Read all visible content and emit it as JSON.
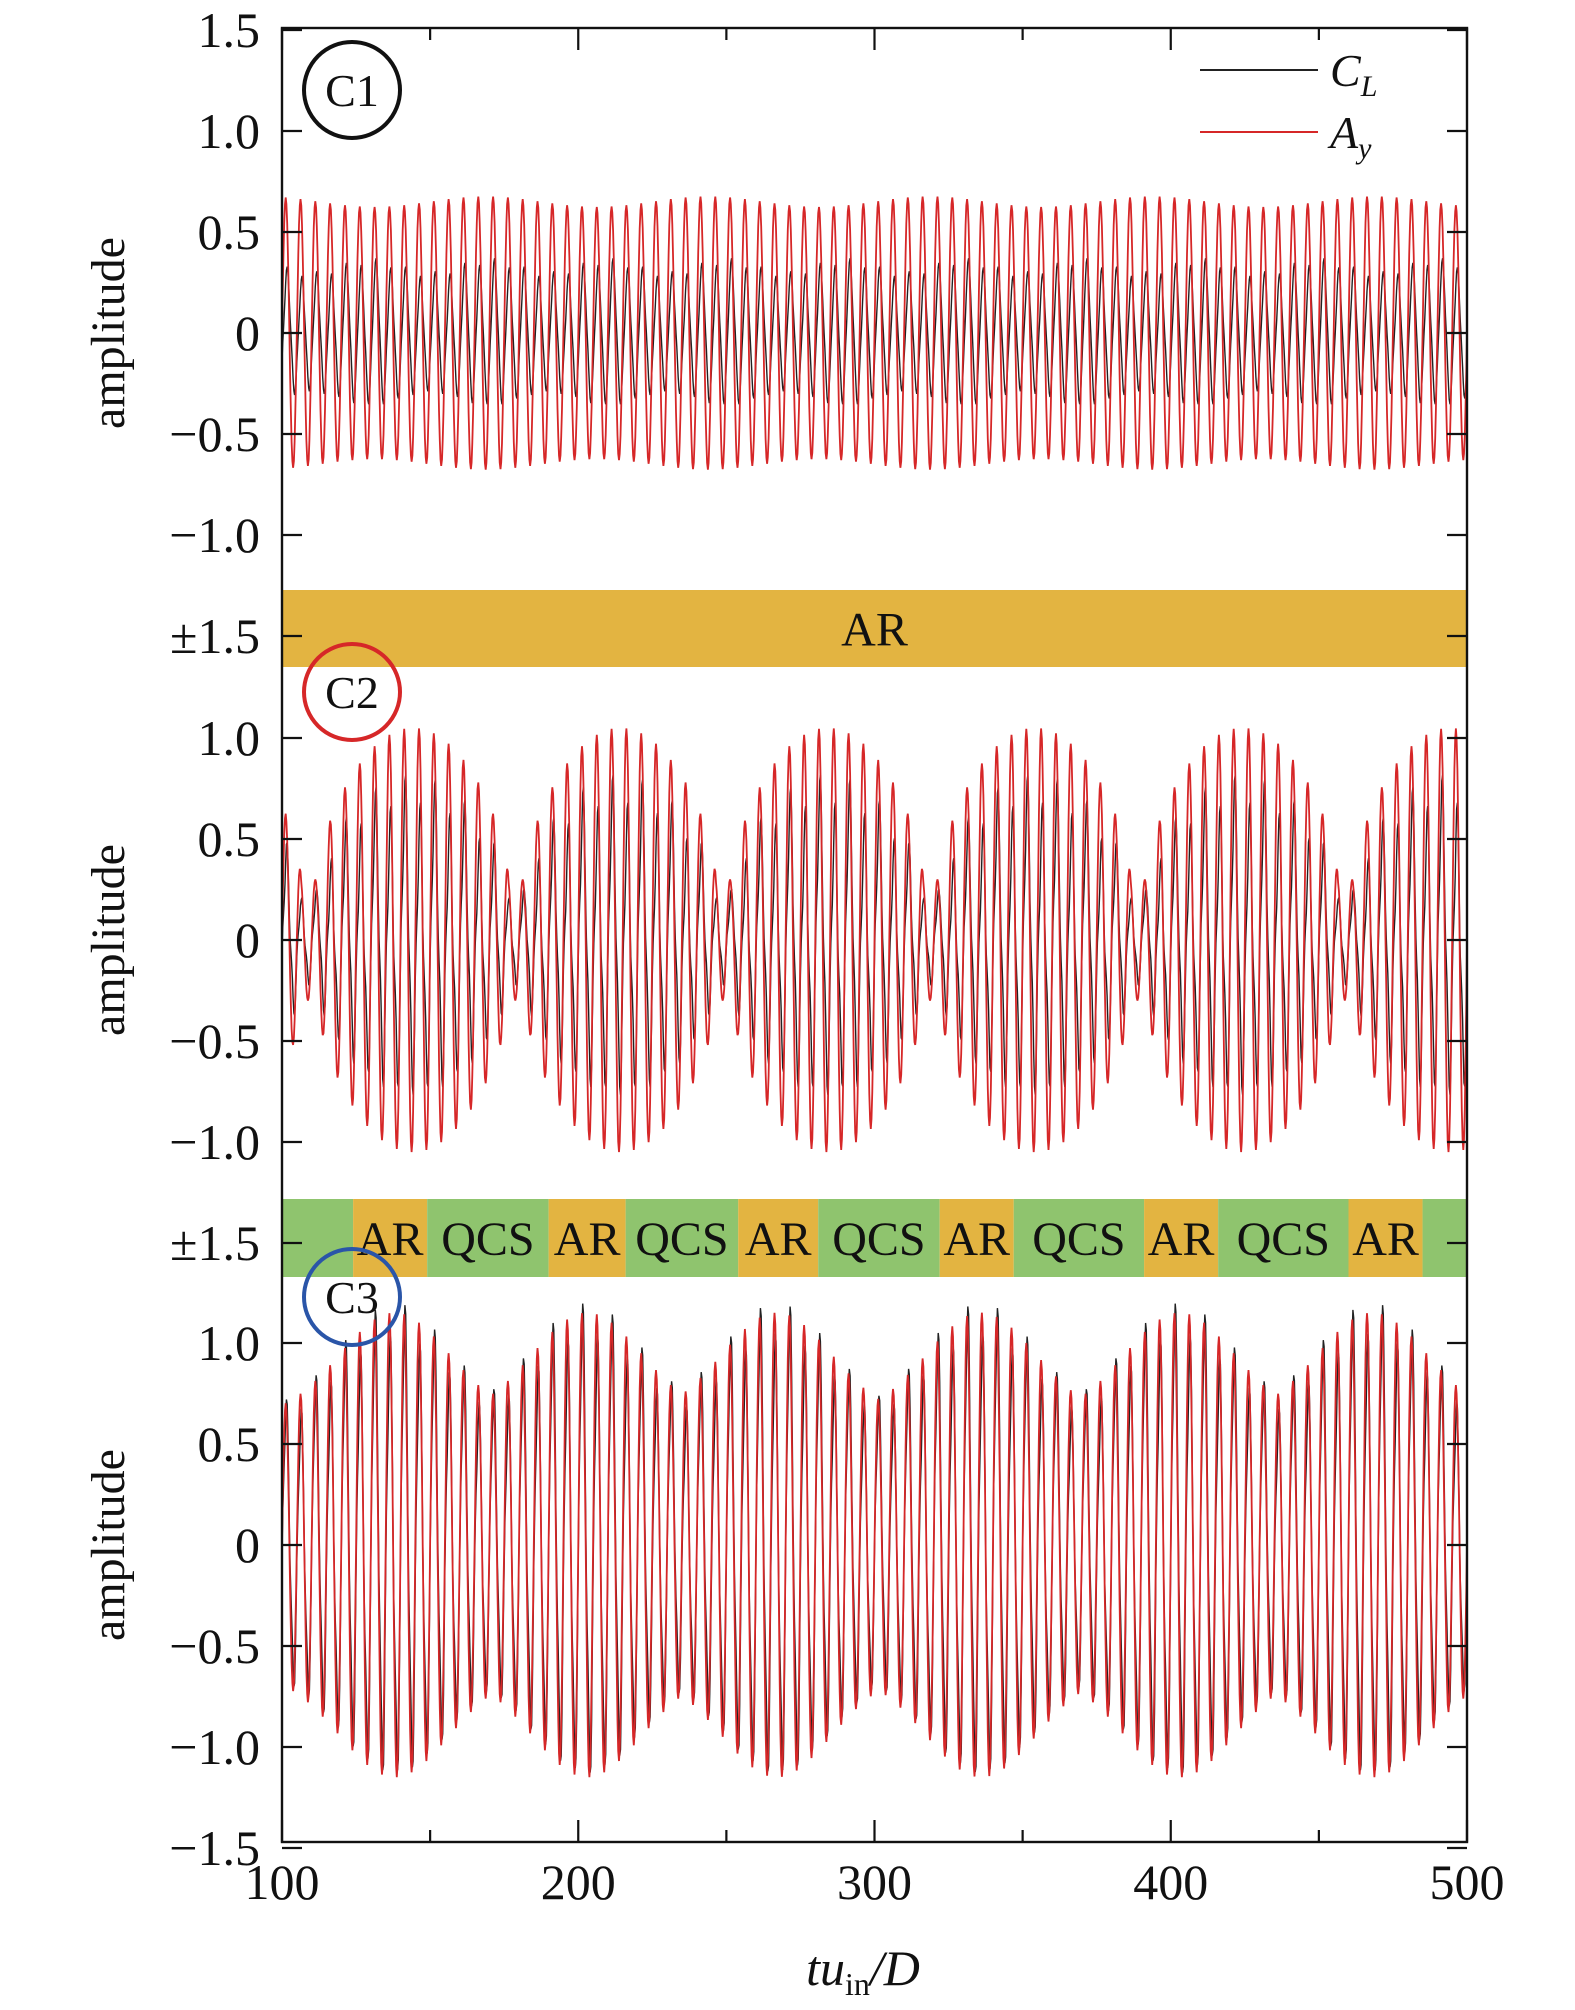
{
  "chart_data": {
    "type": "line",
    "x": {
      "label_main": "tu",
      "label_sub": "in",
      "label_tail": "/D",
      "range": [
        100,
        500
      ],
      "ticks": [
        100,
        200,
        300,
        400,
        500
      ],
      "tick_labels": [
        "100",
        "200",
        "300",
        "400",
        "500"
      ],
      "minor_step": 50
    },
    "legend": {
      "position": "top-right",
      "entries": [
        {
          "main": "C",
          "sub": "L",
          "color": "#222222"
        },
        {
          "main": "A",
          "sub": "y",
          "color": "#d62728"
        }
      ]
    },
    "panels": [
      {
        "label": "C1",
        "circle_color": "#111111",
        "ylabel": "amplitude",
        "ylim": [
          -1.5,
          1.5
        ],
        "yticks": [
          {
            "value": 1.5,
            "label": "1.5"
          },
          {
            "value": 1.0,
            "label": "1.0"
          },
          {
            "value": 0.5,
            "label": "0.5"
          },
          {
            "value": 0,
            "label": "0"
          },
          {
            "value": -0.5,
            "label": "−0.5"
          },
          {
            "value": -1.0,
            "label": "−1.0"
          },
          {
            "value": -1.5,
            "label": "±1.5"
          }
        ],
        "signal": {
          "freq": 0.2,
          "Ay": {
            "base": 0.65,
            "mod_depth": 0.04,
            "mod_period": 75,
            "phase": 0
          },
          "CL": {
            "base": 0.3,
            "mod_depth": 0.1,
            "mod_period": 40,
            "phase": -0.6,
            "harmonic": 0.08
          }
        },
        "band": {
          "segments": [
            {
              "x0": 100,
              "x1": 500,
              "label": "AR",
              "color": "#e3b441"
            }
          ]
        }
      },
      {
        "label": "C2",
        "circle_color": "#d62728",
        "ylabel": "amplitude",
        "ylim": [
          -1.5,
          1.5
        ],
        "yticks": [
          {
            "value": 1.0,
            "label": "1.0"
          },
          {
            "value": 0.5,
            "label": "0.5"
          },
          {
            "value": 0,
            "label": "0"
          },
          {
            "value": -0.5,
            "label": "−0.5"
          },
          {
            "value": -1.0,
            "label": "−1.0"
          },
          {
            "value": -1.5,
            "label": "±1.5"
          }
        ],
        "signal": {
          "freq": 0.2,
          "envelope_period": 70,
          "envelope_start": 112,
          "Ay": {
            "max": 1.05,
            "min": 0.3
          },
          "CL": {
            "max": 0.65,
            "min": 0.2,
            "phase": -0.4,
            "harmonic": 0.18
          }
        },
        "band": {
          "segments": [
            {
              "x0": 100,
              "x1": 124,
              "label": "",
              "color": "#8fc46e"
            },
            {
              "x0": 124,
              "x1": 149,
              "label": "AR",
              "color": "#e3b441"
            },
            {
              "x0": 149,
              "x1": 190,
              "label": "QCS",
              "color": "#8fc46e"
            },
            {
              "x0": 190,
              "x1": 216,
              "label": "AR",
              "color": "#e3b441"
            },
            {
              "x0": 216,
              "x1": 254,
              "label": "QCS",
              "color": "#8fc46e"
            },
            {
              "x0": 254,
              "x1": 281,
              "label": "AR",
              "color": "#e3b441"
            },
            {
              "x0": 281,
              "x1": 322,
              "label": "QCS",
              "color": "#8fc46e"
            },
            {
              "x0": 322,
              "x1": 347,
              "label": "AR",
              "color": "#e3b441"
            },
            {
              "x0": 347,
              "x1": 391,
              "label": "QCS",
              "color": "#8fc46e"
            },
            {
              "x0": 391,
              "x1": 416,
              "label": "AR",
              "color": "#e3b441"
            },
            {
              "x0": 416,
              "x1": 460,
              "label": "QCS",
              "color": "#8fc46e"
            },
            {
              "x0": 460,
              "x1": 485,
              "label": "AR",
              "color": "#e3b441"
            },
            {
              "x0": 485,
              "x1": 500,
              "label": "",
              "color": "#8fc46e"
            }
          ]
        }
      },
      {
        "label": "C3",
        "circle_color": "#2a55a8",
        "ylabel": "amplitude",
        "ylim": [
          -1.5,
          1.5
        ],
        "yticks": [
          {
            "value": 1.0,
            "label": "1.0"
          },
          {
            "value": 0.5,
            "label": "0.5"
          },
          {
            "value": 0,
            "label": "0"
          },
          {
            "value": -0.5,
            "label": "−0.5"
          },
          {
            "value": -1.0,
            "label": "−1.0"
          },
          {
            "value": -1.5,
            "label": "−1.5"
          }
        ],
        "signal": {
          "freq": 0.2,
          "beat_period": 66,
          "beat_peaks": [
            138,
            203,
            267,
            336,
            403,
            468
          ],
          "Ay": {
            "max": 1.15,
            "min": 0.35
          },
          "CL": {
            "max": 1.05,
            "min": 0.3,
            "phase": -0.2,
            "harmonic": 0.12
          }
        }
      }
    ]
  }
}
